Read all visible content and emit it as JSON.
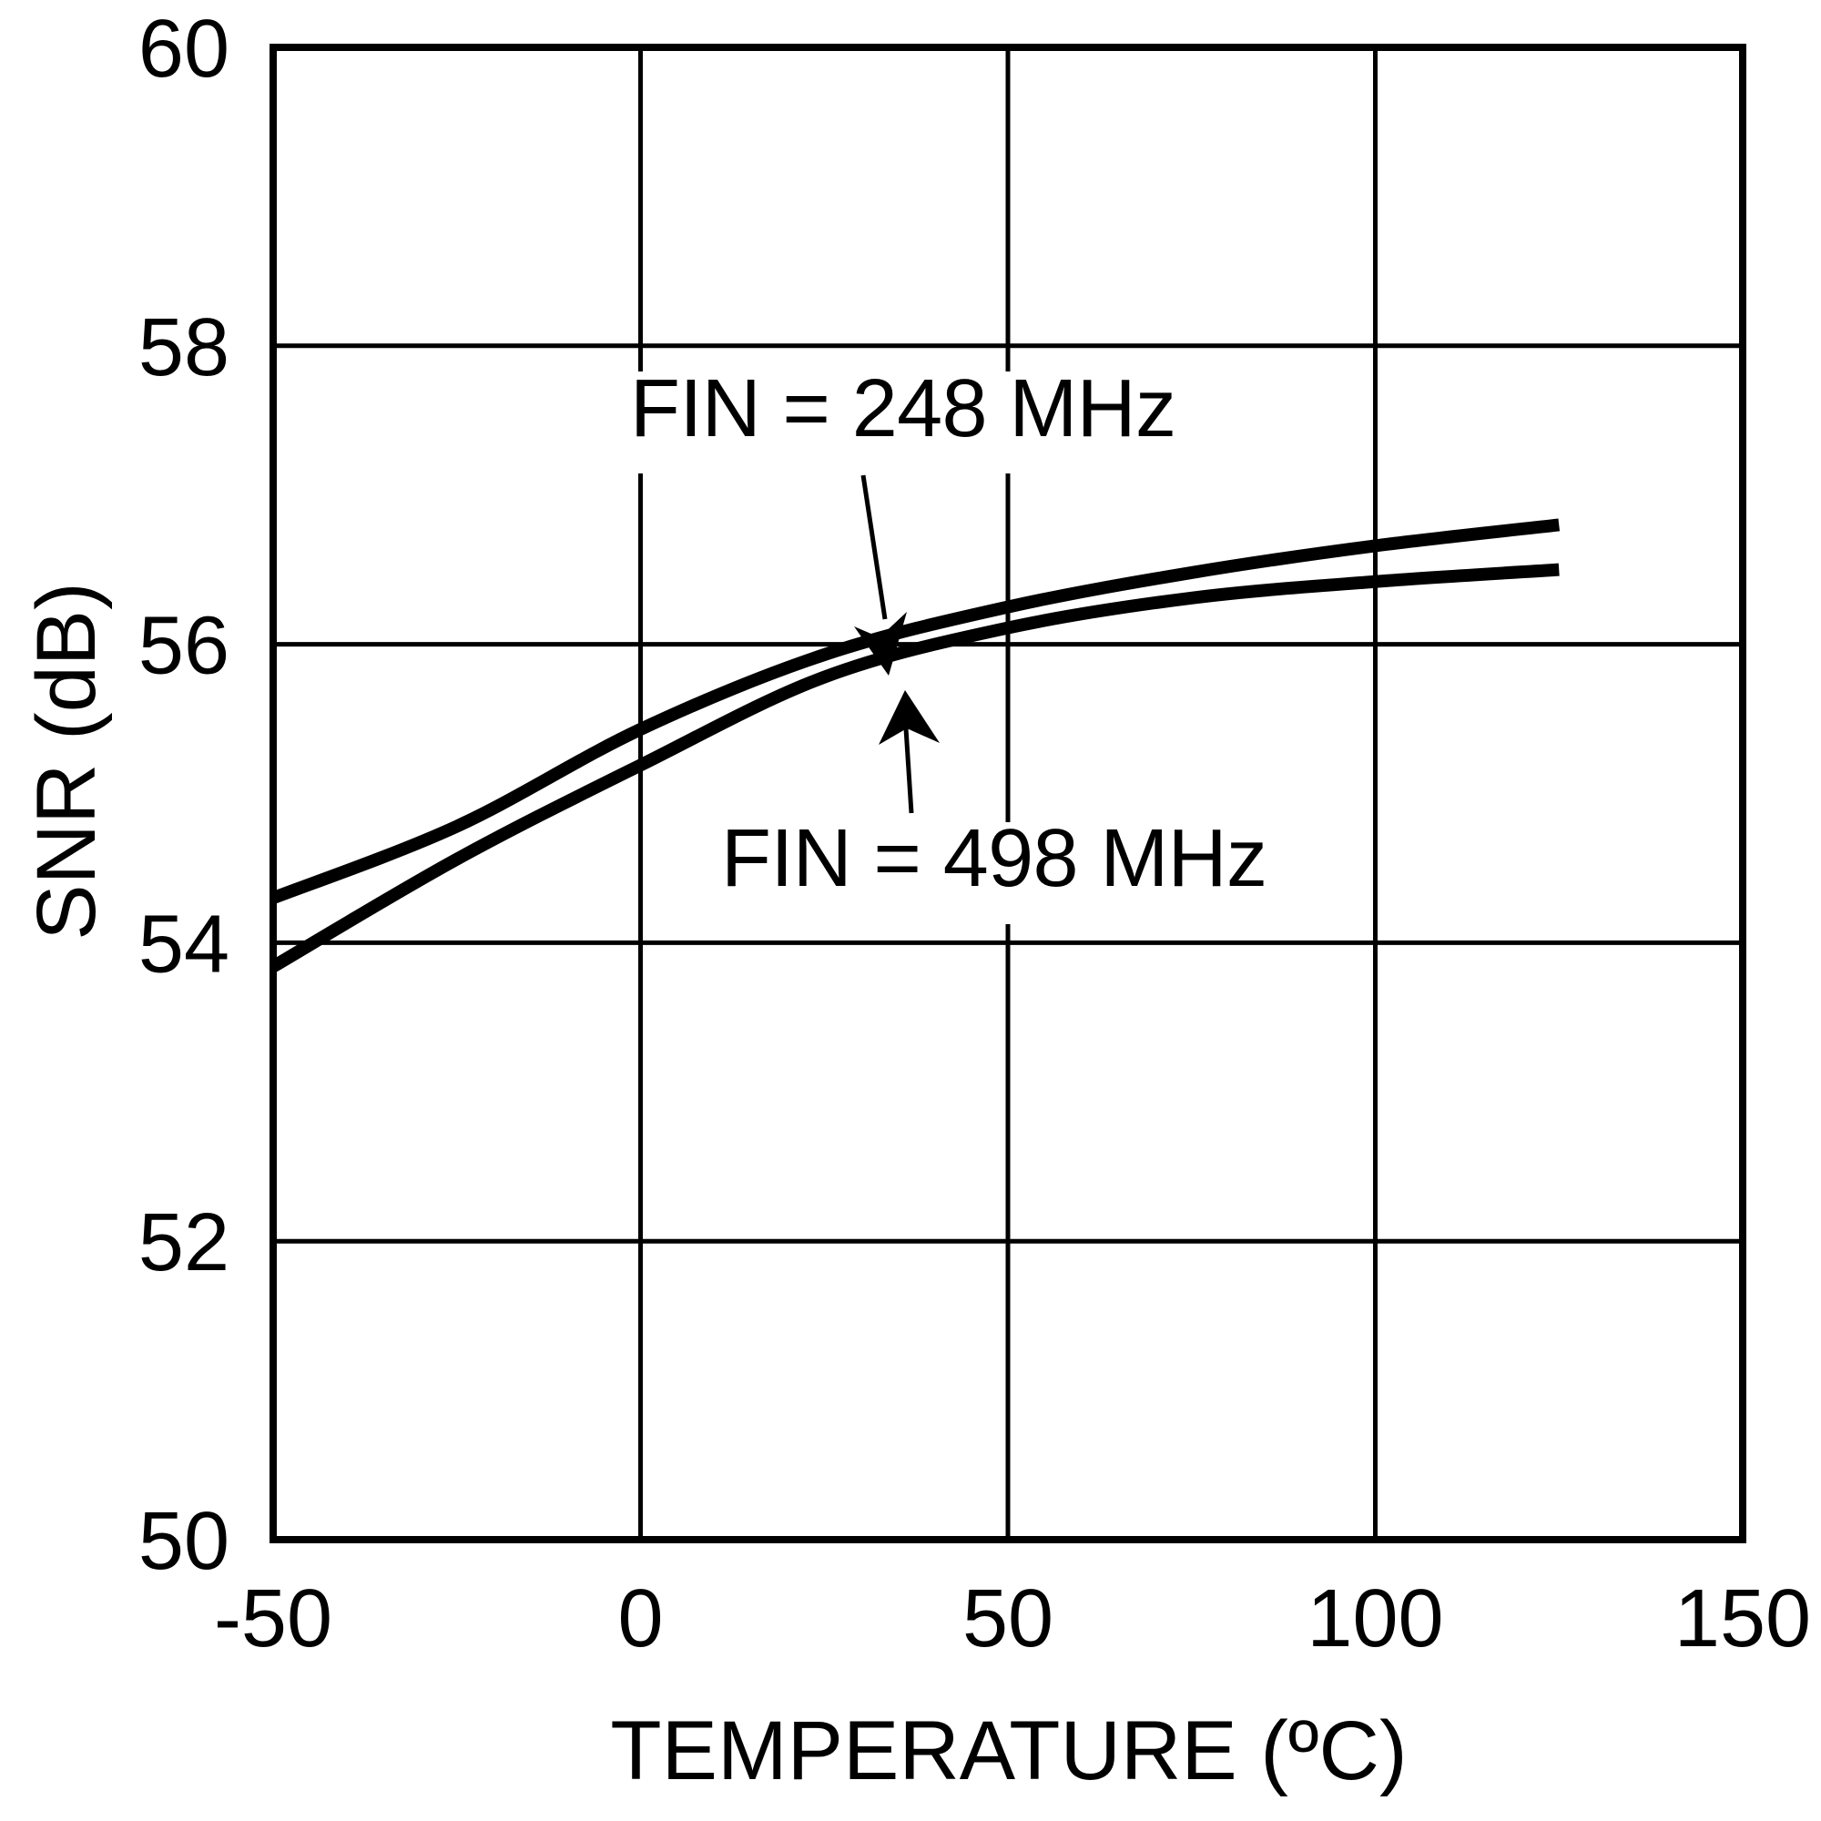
{
  "chart_data": {
    "type": "line",
    "title": "",
    "xlabel": "TEMPERATURE (ºC)",
    "ylabel": "SNR (dB)",
    "xlim": [
      -50,
      150
    ],
    "ylim": [
      50,
      60
    ],
    "x_ticks": [
      -50,
      0,
      50,
      100,
      150
    ],
    "y_ticks": [
      50,
      52,
      54,
      56,
      58,
      60
    ],
    "x_tick_labels": [
      "-50",
      "0",
      "50",
      "100",
      "150"
    ],
    "y_tick_labels": [
      "50",
      "52",
      "54",
      "56",
      "58",
      "60"
    ],
    "grid": true,
    "legend": "none (inline annotations with arrows)",
    "x": [
      -50,
      -25,
      0,
      25,
      50,
      75,
      100,
      125
    ],
    "series": [
      {
        "name": "FIN = 248 MHz",
        "values": [
          54.3,
          54.78,
          55.43,
          55.93,
          56.25,
          56.48,
          56.66,
          56.8
        ]
      },
      {
        "name": "FIN = 498 MHz",
        "values": [
          53.84,
          54.56,
          55.19,
          55.78,
          56.11,
          56.31,
          56.42,
          56.5
        ]
      }
    ],
    "annotations": [
      {
        "text": "FIN = 248 MHz",
        "points_to_series": "FIN = 248 MHz",
        "arrow_tip": [
          34,
          56.05
        ]
      },
      {
        "text": "FIN = 498 MHz",
        "points_to_series": "FIN = 498 MHz",
        "arrow_tip": [
          35,
          55.85
        ]
      }
    ]
  },
  "colors": {
    "background": "#ffffff",
    "foreground": "#000000"
  }
}
